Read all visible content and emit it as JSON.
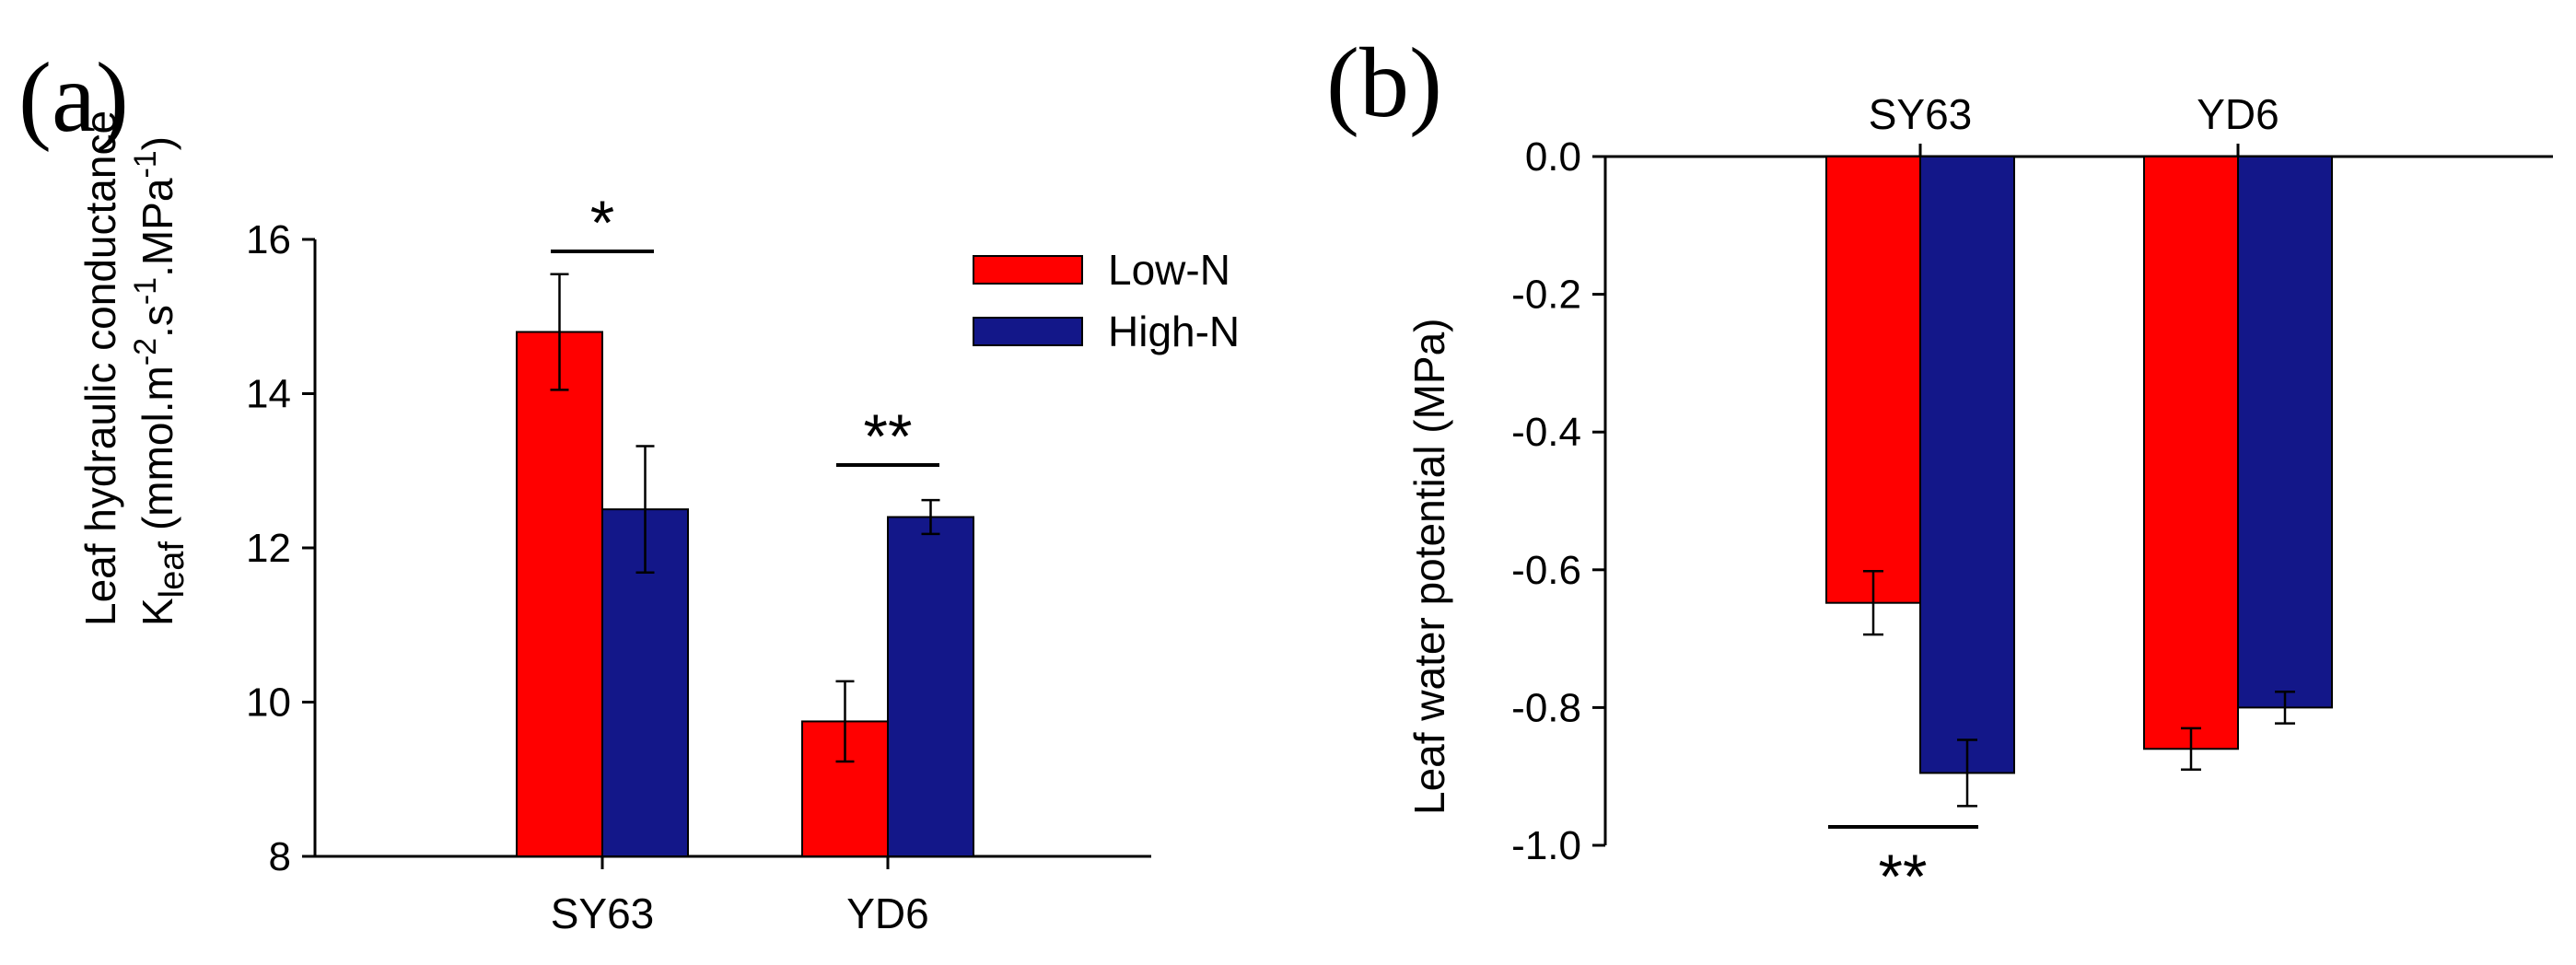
{
  "chart_data": [
    {
      "type": "bar",
      "panel_label": "(a)",
      "categories": [
        "SY63",
        "YD6"
      ],
      "series": [
        {
          "name": "Low-N",
          "color": "#ff0000",
          "values": [
            14.8,
            9.75
          ],
          "errors": [
            0.75,
            0.52
          ]
        },
        {
          "name": "High-N",
          "color": "#131789",
          "values": [
            12.5,
            12.4
          ],
          "errors": [
            0.82,
            0.22
          ]
        }
      ],
      "ylabel_line1": "Leaf hydraulic conductance",
      "ylabel_line2_main": "K",
      "ylabel_line2_sub": "leaf",
      "ylabel_line2_units": "(mmol.m",
      "ylabel_sup1": "-2",
      "ylabel_unit2": ".s",
      "ylabel_sup2": "-1",
      "ylabel_unit3": ".MPa",
      "ylabel_sup3": "-1",
      "ylabel_close": ")",
      "ylim": [
        8,
        16
      ],
      "yticks": [
        8,
        10,
        12,
        14,
        16
      ],
      "legend": {
        "position": "top-right",
        "entries": [
          "Low-N",
          "High-N"
        ]
      },
      "significance": [
        {
          "category": "SY63",
          "label": "*"
        },
        {
          "category": "YD6",
          "label": "**"
        }
      ]
    },
    {
      "type": "bar",
      "panel_label": "(b)",
      "categories": [
        "SY63",
        "YD6"
      ],
      "series": [
        {
          "name": "Low-N",
          "color": "#ff0000",
          "values": [
            -0.648,
            -0.86
          ],
          "errors": [
            0.046,
            0.03
          ]
        },
        {
          "name": "High-N",
          "color": "#131789",
          "values": [
            -0.895,
            -0.8
          ],
          "errors": [
            0.048,
            0.023
          ]
        }
      ],
      "ylabel": "Leaf water potential (MPa)",
      "ylim": [
        -1.0,
        0.0
      ],
      "yticks": [
        "0.0",
        "-0.2",
        "-0.4",
        "-0.6",
        "-0.8",
        "-1.0"
      ],
      "significance": [
        {
          "category": "SY63",
          "label": "**"
        }
      ]
    }
  ]
}
